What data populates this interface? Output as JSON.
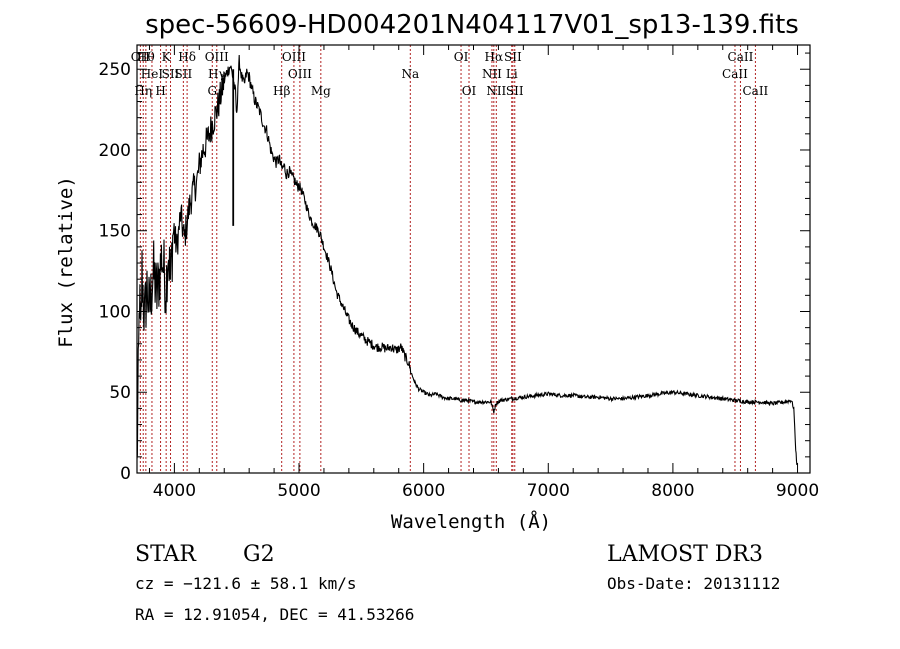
{
  "chart_data": {
    "type": "line",
    "title": "spec-56609-HD004201N404117V01_sp13-139.fits",
    "xlabel": "Wavelength (Å)",
    "ylabel": "Flux (relative)",
    "xlim": [
      3700,
      9100
    ],
    "ylim": [
      0,
      265
    ],
    "xticks": [
      4000,
      5000,
      6000,
      7000,
      8000,
      9000
    ],
    "yticks": [
      0,
      50,
      100,
      150,
      200,
      250
    ],
    "series": [
      {
        "name": "flux",
        "x": [
          3700,
          3710,
          3720,
          3730,
          3740,
          3760,
          3780,
          3800,
          3830,
          3860,
          3900,
          3933,
          3950,
          3968,
          3990,
          4020,
          4050,
          4080,
          4101,
          4120,
          4150,
          4180,
          4200,
          4230,
          4260,
          4300,
          4330,
          4360,
          4390,
          4420,
          4450,
          4470,
          4490,
          4500,
          4510,
          4520,
          4540,
          4560,
          4580,
          4600,
          4620,
          4640,
          4660,
          4680,
          4700,
          4720,
          4740,
          4760,
          4780,
          4800,
          4820,
          4840,
          4861,
          4880,
          4900,
          4920,
          4940,
          4960,
          4980,
          5000,
          5020,
          5050,
          5080,
          5110,
          5140,
          5170,
          5200,
          5230,
          5260,
          5300,
          5340,
          5380,
          5420,
          5460,
          5500,
          5540,
          5580,
          5620,
          5660,
          5700,
          5740,
          5780,
          5820,
          5850,
          5880,
          5900,
          5930,
          5960,
          6000,
          6050,
          6100,
          6150,
          6200,
          6250,
          6300,
          6350,
          6400,
          6450,
          6500,
          6540,
          6563,
          6580,
          6620,
          6700,
          6800,
          6900,
          7000,
          7100,
          7200,
          7300,
          7400,
          7500,
          7600,
          7700,
          7800,
          7900,
          8000,
          8100,
          8200,
          8300,
          8400,
          8500,
          8600,
          8700,
          8800,
          8900,
          8950,
          8970,
          8985,
          8995
        ],
        "y": [
          2,
          55,
          110,
          80,
          125,
          95,
          115,
          100,
          125,
          110,
          135,
          115,
          140,
          118,
          150,
          140,
          160,
          145,
          155,
          165,
          175,
          180,
          190,
          200,
          205,
          215,
          222,
          230,
          240,
          248,
          252,
          245,
          235,
          220,
          240,
          255,
          245,
          240,
          248,
          245,
          238,
          232,
          228,
          225,
          220,
          215,
          212,
          205,
          198,
          195,
          192,
          195,
          188,
          190,
          185,
          187,
          183,
          182,
          178,
          178,
          175,
          168,
          160,
          155,
          152,
          148,
          140,
          133,
          125,
          112,
          105,
          98,
          92,
          88,
          85,
          82,
          80,
          78,
          78,
          77,
          78,
          76,
          78,
          72,
          68,
          62,
          56,
          52,
          50,
          48,
          49,
          47,
          46,
          46,
          45,
          45,
          44,
          44,
          44,
          44,
          38,
          43,
          45,
          46,
          47,
          48,
          49,
          48,
          48,
          47,
          47,
          46,
          46,
          47,
          48,
          49,
          50,
          49,
          48,
          47,
          46,
          45,
          44,
          44,
          43,
          44,
          45,
          40,
          15,
          5
        ]
      }
    ],
    "spikes": [
      {
        "x": 4472,
        "y_top": 250,
        "y_bottom": 153
      }
    ],
    "lines": [
      {
        "x": 3727,
        "rows": [
          "OII"
        ]
      },
      {
        "x": 3750,
        "rows": [
          "",
          "",
          "Hη"
        ]
      },
      {
        "x": 3771,
        "rows": [
          "Hθ"
        ]
      },
      {
        "x": 3820,
        "rows": [
          "",
          "HeI"
        ]
      },
      {
        "x": 3889,
        "rows": [
          "",
          "",
          "H"
        ]
      },
      {
        "x": 3934,
        "rows": [
          "K"
        ]
      },
      {
        "x": 3969,
        "rows": [
          "",
          "SII"
        ]
      },
      {
        "x": 4072,
        "rows": [
          "",
          "SII"
        ]
      },
      {
        "x": 4102,
        "rows": [
          "Hδ"
        ]
      },
      {
        "x": 4304,
        "rows": [
          "",
          "",
          "G"
        ]
      },
      {
        "x": 4340,
        "rows": [
          "OIII",
          "Hγ"
        ]
      },
      {
        "x": 4861,
        "rows": [
          "",
          "",
          "Hβ"
        ]
      },
      {
        "x": 4959,
        "rows": [
          "OIII"
        ]
      },
      {
        "x": 5007,
        "rows": [
          "",
          "OIII"
        ]
      },
      {
        "x": 5175,
        "rows": [
          "",
          "",
          "Mg"
        ]
      },
      {
        "x": 5893,
        "rows": [
          "",
          "Na"
        ]
      },
      {
        "x": 6300,
        "rows": [
          "OI"
        ]
      },
      {
        "x": 6364,
        "rows": [
          "",
          "",
          "OI"
        ]
      },
      {
        "x": 6548,
        "rows": [
          "",
          "NII"
        ]
      },
      {
        "x": 6563,
        "rows": [
          "Hα"
        ]
      },
      {
        "x": 6583,
        "rows": [
          "",
          "",
          "NII"
        ]
      },
      {
        "x": 6707,
        "rows": [
          "",
          "Li"
        ]
      },
      {
        "x": 6716,
        "rows": [
          "SII"
        ]
      },
      {
        "x": 6731,
        "rows": [
          "",
          "",
          "SII"
        ]
      },
      {
        "x": 8498,
        "rows": [
          "",
          "CaII"
        ]
      },
      {
        "x": 8542,
        "rows": [
          "CaII"
        ]
      },
      {
        "x": 8662,
        "rows": [
          "",
          "",
          "CaII"
        ]
      }
    ]
  },
  "info": {
    "class": "STAR",
    "subclass": "G2",
    "survey": "LAMOST DR3",
    "cz": "cz = −121.6 ± 58.1 km/s",
    "obsdate": "Obs-Date: 20131112",
    "radec": "RA =  12.91054, DEC =  41.53266"
  },
  "colors": {
    "line_marker": "#b22222",
    "spectrum": "#000000",
    "axes": "#000000"
  }
}
